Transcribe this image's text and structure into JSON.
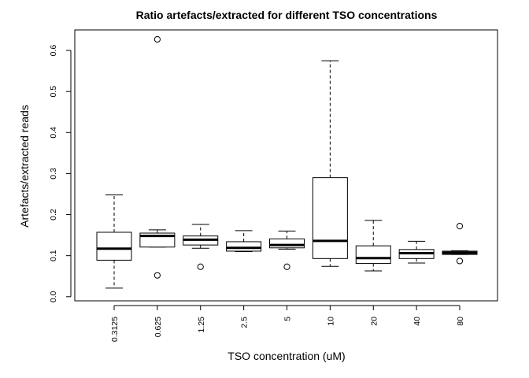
{
  "chart_data": {
    "type": "boxplot",
    "title": "Ratio artefacts/extracted for different TSO concentrations",
    "xlabel": "TSO concentration (uM)",
    "ylabel": "Artefacts/extracted reads",
    "ylim": [
      -0.01,
      0.65
    ],
    "yticks": [
      0.0,
      0.1,
      0.2,
      0.3,
      0.4,
      0.5,
      0.6
    ],
    "ytick_labels": [
      "0.0",
      "0.1",
      "0.2",
      "0.3",
      "0.4",
      "0.5",
      "0.6"
    ],
    "grid": false,
    "legend": "none",
    "categories": [
      "0.3125",
      "0.625",
      "1.25",
      "2.5",
      "5",
      "10",
      "20",
      "40",
      "80"
    ],
    "boxes": [
      {
        "category": "0.3125",
        "whisker_low": 0.021,
        "q1": 0.089,
        "median": 0.117,
        "q3": 0.157,
        "whisker_high": 0.248,
        "outliers": []
      },
      {
        "category": "0.625",
        "whisker_low": 0.121,
        "q1": 0.121,
        "median": 0.148,
        "q3": 0.155,
        "whisker_high": 0.163,
        "outliers": [
          0.627,
          0.052
        ]
      },
      {
        "category": "1.25",
        "whisker_low": 0.118,
        "q1": 0.126,
        "median": 0.139,
        "q3": 0.148,
        "whisker_high": 0.176,
        "outliers": [
          0.073
        ]
      },
      {
        "category": "2.5",
        "whisker_low": 0.11,
        "q1": 0.111,
        "median": 0.119,
        "q3": 0.134,
        "whisker_high": 0.161,
        "outliers": []
      },
      {
        "category": "5",
        "whisker_low": 0.116,
        "q1": 0.119,
        "median": 0.126,
        "q3": 0.141,
        "whisker_high": 0.16,
        "outliers": [
          0.073
        ]
      },
      {
        "category": "10",
        "whisker_low": 0.074,
        "q1": 0.093,
        "median": 0.136,
        "q3": 0.29,
        "whisker_high": 0.575,
        "outliers": []
      },
      {
        "category": "20",
        "whisker_low": 0.063,
        "q1": 0.081,
        "median": 0.094,
        "q3": 0.124,
        "whisker_high": 0.186,
        "outliers": []
      },
      {
        "category": "40",
        "whisker_low": 0.082,
        "q1": 0.093,
        "median": 0.106,
        "q3": 0.115,
        "whisker_high": 0.135,
        "outliers": []
      },
      {
        "category": "80",
        "whisker_low": 0.103,
        "q1": 0.103,
        "median": 0.107,
        "q3": 0.111,
        "whisker_high": 0.112,
        "outliers": [
          0.172,
          0.087
        ]
      }
    ]
  }
}
